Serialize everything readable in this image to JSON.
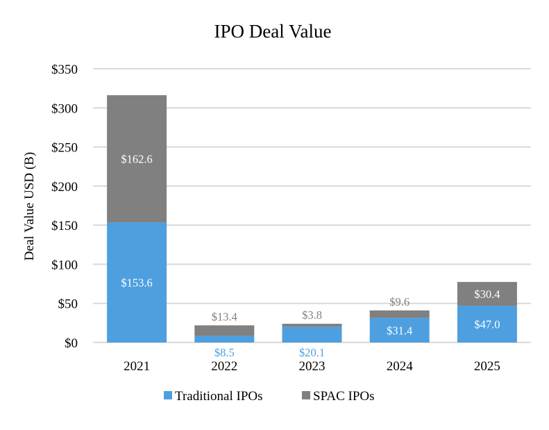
{
  "chart_data": {
    "type": "bar",
    "stacked": true,
    "title": "IPO Deal Value",
    "xlabel": "",
    "ylabel": "Deal Value USD (B)",
    "categories": [
      "2021",
      "2022",
      "2023",
      "2024",
      "2025"
    ],
    "series": [
      {
        "name": "Traditional IPOs",
        "color": "#4d9fe0",
        "values": [
          153.6,
          8.5,
          20.1,
          31.4,
          47.0
        ],
        "labels": [
          "$153.6",
          "$8.5",
          "$20.1",
          "$31.4",
          "$47.0"
        ],
        "label_positions": [
          "inside",
          "below",
          "below",
          "inside",
          "inside"
        ]
      },
      {
        "name": "SPAC IPOs",
        "color": "#808080",
        "values": [
          162.6,
          13.4,
          3.8,
          9.6,
          30.4
        ],
        "labels": [
          "$162.6",
          "$13.4",
          "$3.8",
          "$9.6",
          "$30.4"
        ],
        "label_positions": [
          "inside",
          "above",
          "above",
          "above",
          "inside"
        ]
      }
    ],
    "ylim": [
      0,
      350
    ],
    "yticks": [
      0,
      50,
      100,
      150,
      200,
      250,
      300,
      350
    ],
    "ytick_labels": [
      "$0",
      "$50",
      "$100",
      "$150",
      "$200",
      "$250",
      "$300",
      "$350"
    ],
    "grid": true,
    "grid_color": "#d9d9d9",
    "legend_position": "bottom"
  }
}
